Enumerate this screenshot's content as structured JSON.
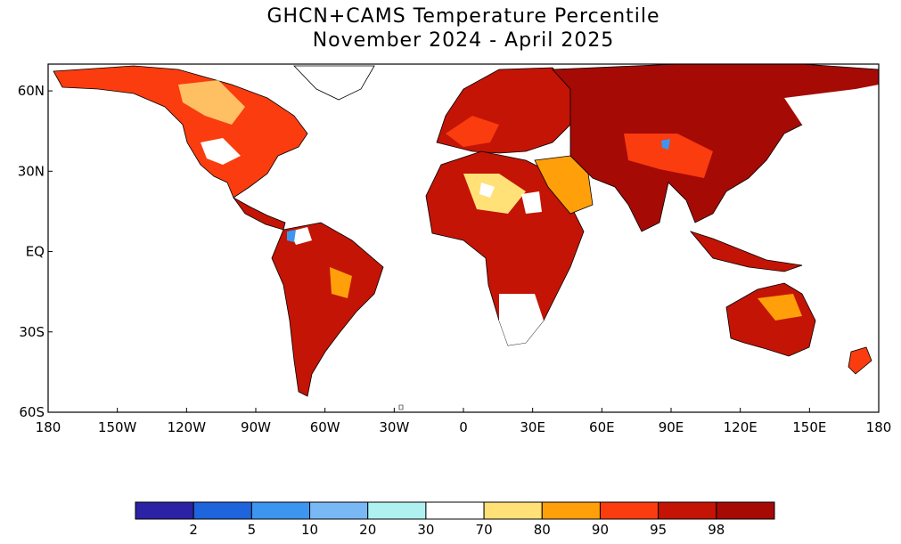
{
  "title": {
    "line1": "GHCN+CAMS Temperature Percentile",
    "line2": "November 2024 - April 2025"
  },
  "map": {
    "lat_labels": [
      "60N",
      "30N",
      "EQ",
      "30S",
      "60S"
    ],
    "lon_labels": [
      "180",
      "150W",
      "120W",
      "90W",
      "60W",
      "30W",
      "0",
      "30E",
      "60E",
      "90E",
      "120E",
      "150E",
      "180"
    ]
  },
  "legend": {
    "colors": [
      "#2c22a6",
      "#1e64dc",
      "#3c96f0",
      "#78b9f5",
      "#aff0f0",
      "#ffffff",
      "#ffe178",
      "#ffa00a",
      "#fa3c0f",
      "#c31405",
      "#a50a05"
    ],
    "labels": [
      "2",
      "5",
      "10",
      "20",
      "30",
      "70",
      "80",
      "90",
      "95",
      "98"
    ]
  }
}
